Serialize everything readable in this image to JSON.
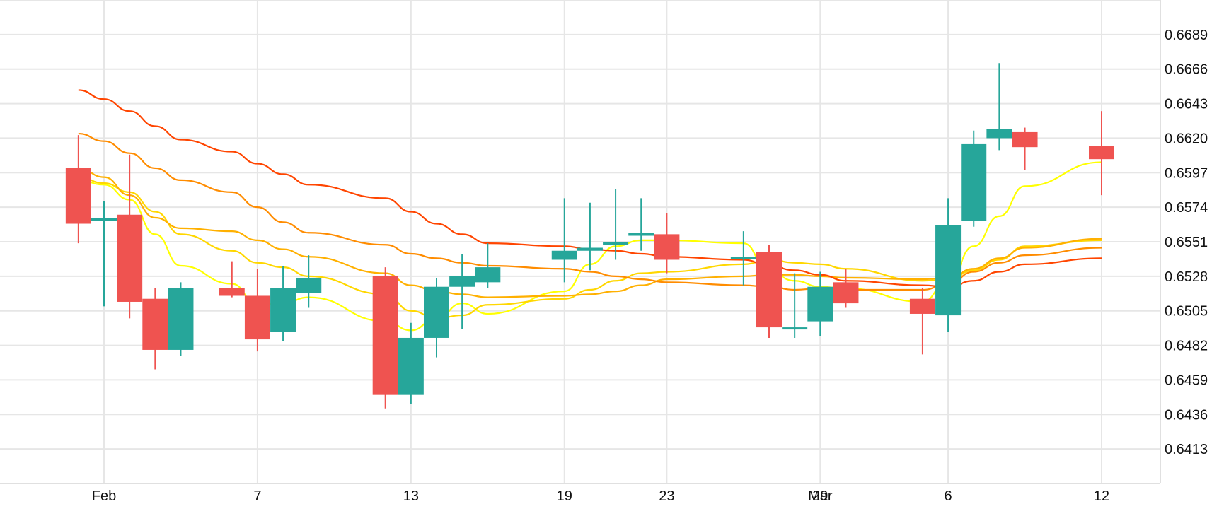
{
  "chart_data": {
    "type": "candlestick",
    "title": "",
    "xlabel": "",
    "ylabel": "",
    "y_ticks": [
      "0.6413",
      "0.6436",
      "0.6459",
      "0.6482",
      "0.6505",
      "0.6528",
      "0.6551",
      "0.6574",
      "0.6597",
      "0.6620",
      "0.6643",
      "0.6666",
      "0.6689"
    ],
    "ylim": [
      0.639,
      0.6712
    ],
    "x_ticks": [
      {
        "label": "Feb",
        "date": "2023-02-01"
      },
      {
        "label": "7",
        "date": "2023-02-07"
      },
      {
        "label": "13",
        "date": "2023-02-13"
      },
      {
        "label": "19",
        "date": "2023-02-19"
      },
      {
        "label": "23",
        "date": "2023-02-23"
      },
      {
        "label": "29",
        "date": "2023-02-29"
      },
      {
        "label": "Mar",
        "date": "2023-03-01"
      },
      {
        "label": "6",
        "date": "2023-03-06"
      },
      {
        "label": "12",
        "date": "2023-03-12"
      }
    ],
    "grid": true,
    "up_color": "#26a69a",
    "down_color": "#ef5350",
    "candles": [
      {
        "date": "2023-01-31",
        "open": 0.66,
        "high": 0.6622,
        "low": 0.655,
        "close": 0.6563
      },
      {
        "date": "2023-02-01",
        "open": 0.6565,
        "high": 0.6578,
        "low": 0.6508,
        "close": 0.6567
      },
      {
        "date": "2023-02-02",
        "open": 0.6569,
        "high": 0.6609,
        "low": 0.65,
        "close": 0.6511
      },
      {
        "date": "2023-02-03",
        "open": 0.6513,
        "high": 0.652,
        "low": 0.6466,
        "close": 0.6479
      },
      {
        "date": "2023-02-04",
        "open": 0.6479,
        "high": 0.6524,
        "low": 0.6475,
        "close": 0.652
      },
      {
        "date": "2023-02-06",
        "open": 0.652,
        "high": 0.6538,
        "low": 0.6514,
        "close": 0.6515
      },
      {
        "date": "2023-02-07",
        "open": 0.6515,
        "high": 0.6533,
        "low": 0.6478,
        "close": 0.6486
      },
      {
        "date": "2023-02-08",
        "open": 0.6491,
        "high": 0.6535,
        "low": 0.6485,
        "close": 0.652
      },
      {
        "date": "2023-02-09",
        "open": 0.6517,
        "high": 0.6542,
        "low": 0.6507,
        "close": 0.6527
      },
      {
        "date": "2023-02-12",
        "open": 0.6528,
        "high": 0.6534,
        "low": 0.644,
        "close": 0.6449
      },
      {
        "date": "2023-02-13",
        "open": 0.6449,
        "high": 0.6497,
        "low": 0.6443,
        "close": 0.6487
      },
      {
        "date": "2023-02-14",
        "open": 0.6487,
        "high": 0.6527,
        "low": 0.6474,
        "close": 0.6521
      },
      {
        "date": "2023-02-15",
        "open": 0.6521,
        "high": 0.6543,
        "low": 0.6493,
        "close": 0.6528
      },
      {
        "date": "2023-02-16",
        "open": 0.6524,
        "high": 0.655,
        "low": 0.652,
        "close": 0.6534
      },
      {
        "date": "2023-02-19",
        "open": 0.6539,
        "high": 0.658,
        "low": 0.6524,
        "close": 0.6545
      },
      {
        "date": "2023-02-20",
        "open": 0.6545,
        "high": 0.6577,
        "low": 0.6532,
        "close": 0.6547
      },
      {
        "date": "2023-02-21",
        "open": 0.6549,
        "high": 0.6586,
        "low": 0.6539,
        "close": 0.6551
      },
      {
        "date": "2023-02-22",
        "open": 0.6555,
        "high": 0.658,
        "low": 0.6545,
        "close": 0.6557
      },
      {
        "date": "2023-02-23",
        "open": 0.6556,
        "high": 0.657,
        "low": 0.653,
        "close": 0.6539
      },
      {
        "date": "2023-02-26",
        "open": 0.654,
        "high": 0.6558,
        "low": 0.6522,
        "close": 0.6541
      },
      {
        "date": "2023-02-27",
        "open": 0.6544,
        "high": 0.6549,
        "low": 0.6487,
        "close": 0.6494
      },
      {
        "date": "2023-02-28",
        "open": 0.6494,
        "high": 0.653,
        "low": 0.6487,
        "close": 0.6494
      },
      {
        "date": "2023-03-01",
        "open": 0.6498,
        "high": 0.6531,
        "low": 0.6488,
        "close": 0.6521
      },
      {
        "date": "2023-03-02",
        "open": 0.6524,
        "high": 0.6533,
        "low": 0.6507,
        "close": 0.651
      },
      {
        "date": "2023-03-05",
        "open": 0.6513,
        "high": 0.652,
        "low": 0.6476,
        "close": 0.6503
      },
      {
        "date": "2023-03-06",
        "open": 0.6502,
        "high": 0.658,
        "low": 0.6491,
        "close": 0.6562
      },
      {
        "date": "2023-03-07",
        "open": 0.6565,
        "high": 0.6625,
        "low": 0.6561,
        "close": 0.6616
      },
      {
        "date": "2023-03-08",
        "open": 0.662,
        "high": 0.667,
        "low": 0.6612,
        "close": 0.6626
      },
      {
        "date": "2023-03-09",
        "open": 0.6624,
        "high": 0.6627,
        "low": 0.6599,
        "close": 0.6614
      },
      {
        "date": "2023-03-12",
        "open": 0.6615,
        "high": 0.6638,
        "low": 0.6582,
        "close": 0.6606
      }
    ],
    "series": [
      {
        "color": "#ffff00",
        "values": [
          0.6592,
          0.6589,
          0.6579,
          0.6556,
          0.6535,
          0.6523,
          0.6509,
          0.651,
          0.6514,
          0.6498,
          0.6492,
          0.65,
          0.651,
          0.6503,
          0.6518,
          0.6536,
          0.6548,
          0.6552,
          0.6552,
          0.655,
          0.6531,
          0.6525,
          0.6521,
          0.652,
          0.6511,
          0.6525,
          0.6548,
          0.6568,
          0.6588,
          0.6604
        ]
      },
      {
        "color": "#ffd700",
        "values": [
          0.6594,
          0.659,
          0.6584,
          0.6571,
          0.6556,
          0.6545,
          0.6537,
          0.6534,
          0.6528,
          0.6516,
          0.6505,
          0.65,
          0.6502,
          0.6509,
          0.6513,
          0.6519,
          0.6525,
          0.653,
          0.6531,
          0.6536,
          0.6539,
          0.6537,
          0.6536,
          0.6533,
          0.6525,
          0.6526,
          0.6532,
          0.6539,
          0.6548,
          0.6552
        ]
      },
      {
        "color": "#ffb000",
        "values": [
          0.66,
          0.6594,
          0.6582,
          0.6567,
          0.656,
          0.6558,
          0.6552,
          0.6546,
          0.6541,
          0.653,
          0.6522,
          0.6518,
          0.6516,
          0.6514,
          0.6515,
          0.6516,
          0.6518,
          0.6522,
          0.6526,
          0.6528,
          0.6529,
          0.6529,
          0.6528,
          0.6527,
          0.6526,
          0.6527,
          0.6533,
          0.654,
          0.6547,
          0.6553
        ]
      },
      {
        "color": "#ff8c00",
        "values": [
          0.6623,
          0.6618,
          0.661,
          0.66,
          0.6592,
          0.6584,
          0.6574,
          0.6564,
          0.6557,
          0.6549,
          0.6543,
          0.654,
          0.6537,
          0.6535,
          0.6533,
          0.6531,
          0.6528,
          0.6526,
          0.6524,
          0.6522,
          0.6521,
          0.6519,
          0.652,
          0.6519,
          0.6519,
          0.6523,
          0.6531,
          0.6537,
          0.6542,
          0.6547
        ]
      },
      {
        "color": "#ff4500",
        "values": [
          0.6652,
          0.6646,
          0.6638,
          0.6628,
          0.6619,
          0.6611,
          0.6603,
          0.6596,
          0.6589,
          0.658,
          0.6571,
          0.6563,
          0.6556,
          0.655,
          0.6548,
          0.6546,
          0.6545,
          0.6543,
          0.6541,
          0.6539,
          0.6535,
          0.6532,
          0.6529,
          0.6525,
          0.6522,
          0.6521,
          0.6525,
          0.6531,
          0.6536,
          0.654
        ]
      }
    ]
  }
}
